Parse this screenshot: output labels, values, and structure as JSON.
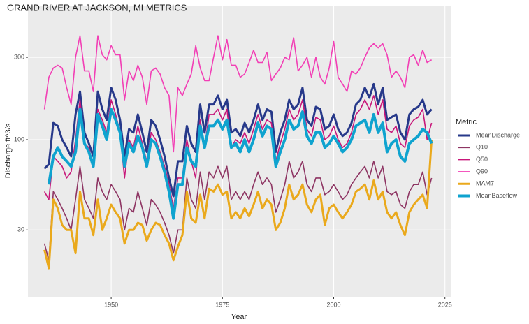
{
  "chart_data": {
    "type": "line",
    "title": "GRAND RIVER AT JACKSON, MI  METRICS",
    "x_label": "Year",
    "y_label": "Discharge ft^3/s",
    "legend_title": "Metric",
    "legend": "right",
    "grid": true,
    "log_y": true,
    "xlim": [
      1931.3,
      2026.3
    ],
    "xticks": [
      1950,
      1975,
      2000,
      2025
    ],
    "ylim": [
      12.3,
      598
    ],
    "yticks": [
      30,
      100,
      300
    ],
    "x": [
      1935,
      1936,
      1937,
      1938,
      1939,
      1940,
      1941,
      1942,
      1943,
      1944,
      1945,
      1946,
      1947,
      1948,
      1949,
      1950,
      1951,
      1952,
      1953,
      1954,
      1955,
      1956,
      1957,
      1958,
      1959,
      1960,
      1961,
      1962,
      1963,
      1964,
      1965,
      1966,
      1967,
      1968,
      1969,
      1970,
      1971,
      1972,
      1973,
      1974,
      1975,
      1976,
      1977,
      1978,
      1979,
      1980,
      1981,
      1982,
      1983,
      1984,
      1985,
      1986,
      1987,
      1988,
      1989,
      1990,
      1991,
      1992,
      1993,
      1994,
      1995,
      1996,
      1997,
      1998,
      1999,
      2000,
      2001,
      2002,
      2003,
      2004,
      2005,
      2006,
      2007,
      2008,
      2009,
      2010,
      2011,
      2012,
      2013,
      2014,
      2015,
      2016,
      2017,
      2018,
      2019,
      2020,
      2021,
      2022
    ],
    "series": [
      {
        "name": "MeanDischarge",
        "color": "#27398a",
        "line_width": 3,
        "values": [
          68,
          72,
          125,
          120,
          100,
          90,
          80,
          140,
          190,
          110,
          95,
          80,
          190,
          150,
          130,
          200,
          170,
          130,
          80,
          115,
          110,
          140,
          110,
          85,
          130,
          120,
          100,
          80,
          60,
          47,
          75,
          75,
          120,
          95,
          85,
          160,
          110,
          160,
          160,
          180,
          150,
          170,
          110,
          115,
          105,
          125,
          110,
          130,
          160,
          130,
          150,
          145,
          85,
          110,
          130,
          170,
          150,
          160,
          200,
          130,
          120,
          155,
          150,
          115,
          120,
          140,
          115,
          105,
          110,
          125,
          160,
          170,
          200,
          175,
          210,
          160,
          200,
          130,
          135,
          140,
          110,
          100,
          140,
          150,
          155,
          170,
          140,
          150
        ]
      },
      {
        "name": "Q10",
        "color": "#8e3563",
        "line_width": 1.6,
        "values": [
          25,
          20,
          50,
          45,
          40,
          35,
          30,
          45,
          70,
          45,
          40,
          35,
          60,
          50,
          45,
          55,
          50,
          45,
          30,
          40,
          38,
          50,
          40,
          32,
          45,
          42,
          38,
          33,
          28,
          22,
          30,
          30,
          60,
          45,
          40,
          65,
          45,
          65,
          60,
          70,
          60,
          70,
          45,
          50,
          45,
          50,
          45,
          55,
          65,
          55,
          60,
          55,
          38,
          45,
          55,
          75,
          60,
          65,
          75,
          55,
          50,
          60,
          60,
          48,
          50,
          55,
          50,
          45,
          48,
          55,
          60,
          65,
          70,
          60,
          75,
          60,
          70,
          50,
          48,
          50,
          42,
          40,
          50,
          55,
          55,
          65,
          48,
          60
        ]
      },
      {
        "name": "Q50",
        "color": "#c8177a",
        "line_width": 1.6,
        "values": [
          50,
          45,
          80,
          75,
          70,
          60,
          65,
          100,
          170,
          95,
          90,
          70,
          150,
          130,
          110,
          170,
          140,
          110,
          60,
          100,
          90,
          120,
          95,
          75,
          110,
          100,
          85,
          70,
          55,
          40,
          60,
          60,
          100,
          75,
          60,
          130,
          90,
          140,
          140,
          150,
          130,
          150,
          90,
          100,
          95,
          110,
          95,
          115,
          140,
          115,
          130,
          125,
          75,
          95,
          115,
          150,
          130,
          140,
          170,
          115,
          105,
          135,
          130,
          100,
          105,
          120,
          100,
          90,
          95,
          110,
          140,
          150,
          170,
          150,
          180,
          140,
          170,
          115,
          110,
          120,
          95,
          90,
          120,
          130,
          135,
          150,
          100,
          125
        ]
      },
      {
        "name": "Q90",
        "color": "#f23fb5",
        "line_width": 1.6,
        "values": [
          150,
          230,
          260,
          270,
          260,
          200,
          160,
          300,
          400,
          250,
          250,
          190,
          400,
          310,
          290,
          350,
          310,
          310,
          170,
          250,
          220,
          270,
          230,
          160,
          250,
          260,
          240,
          200,
          180,
          85,
          200,
          180,
          210,
          240,
          350,
          260,
          220,
          220,
          300,
          400,
          290,
          380,
          270,
          270,
          230,
          240,
          280,
          330,
          280,
          280,
          320,
          220,
          240,
          260,
          300,
          290,
          390,
          250,
          270,
          300,
          230,
          300,
          230,
          210,
          260,
          370,
          230,
          210,
          190,
          250,
          240,
          260,
          300,
          340,
          360,
          340,
          360,
          310,
          230,
          250,
          230,
          200,
          300,
          310,
          270,
          330,
          280,
          290
        ]
      },
      {
        "name": "MAM7",
        "color": "#eaa91c",
        "line_width": 3,
        "values": [
          23,
          18,
          45,
          40,
          32,
          30,
          30,
          22,
          50,
          35,
          35,
          28,
          45,
          30,
          35,
          42,
          38,
          35,
          25,
          30,
          30,
          33,
          32,
          26,
          30,
          33,
          32,
          28,
          25,
          20,
          24,
          28,
          50,
          35,
          33,
          48,
          35,
          52,
          50,
          55,
          48,
          50,
          35,
          38,
          35,
          40,
          36,
          42,
          50,
          40,
          45,
          42,
          30,
          33,
          40,
          55,
          45,
          48,
          55,
          42,
          38,
          45,
          48,
          32,
          40,
          42,
          38,
          35,
          38,
          42,
          50,
          52,
          55,
          45,
          58,
          45,
          50,
          38,
          35,
          38,
          32,
          28,
          38,
          42,
          45,
          48,
          40,
          100
        ]
      },
      {
        "name": "MeanBaseflow",
        "color": "#0fa3cf",
        "line_width": 4,
        "values": [
          null,
          55,
          80,
          90,
          80,
          75,
          70,
          85,
          150,
          95,
          85,
          70,
          140,
          120,
          100,
          150,
          130,
          110,
          70,
          95,
          85,
          105,
          90,
          70,
          100,
          95,
          80,
          65,
          50,
          35,
          55,
          55,
          90,
          75,
          70,
          120,
          90,
          120,
          120,
          130,
          115,
          130,
          90,
          95,
          85,
          100,
          85,
          100,
          125,
          105,
          120,
          115,
          70,
          85,
          100,
          130,
          115,
          120,
          145,
          105,
          95,
          110,
          110,
          90,
          95,
          105,
          95,
          85,
          90,
          100,
          120,
          125,
          130,
          110,
          140,
          110,
          125,
          85,
          95,
          100,
          80,
          75,
          95,
          100,
          105,
          115,
          110,
          95
        ]
      }
    ]
  }
}
